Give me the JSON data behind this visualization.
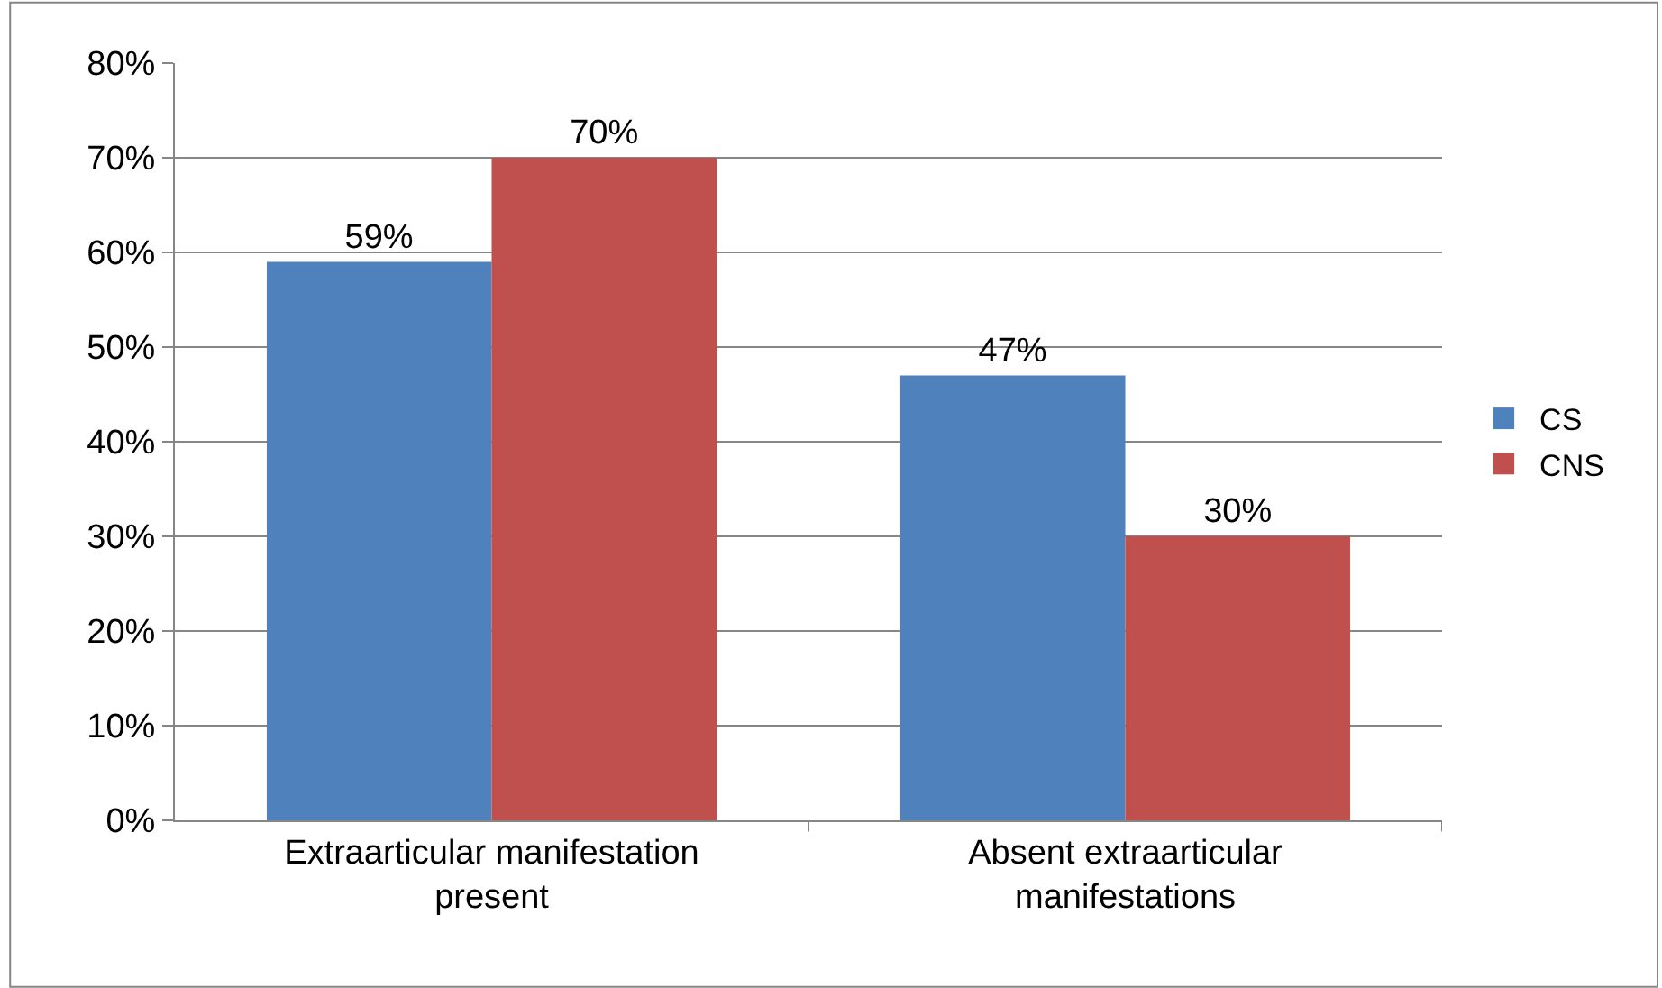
{
  "chart_data": {
    "type": "bar",
    "categories": [
      "Extraarticular manifestation present",
      "Absent extraarticular manifestations"
    ],
    "series": [
      {
        "name": "CS",
        "color": "#4f81bd",
        "values": [
          59,
          47
        ],
        "value_labels": [
          "59%",
          "47%"
        ]
      },
      {
        "name": "CNS",
        "color": "#c0504d",
        "values": [
          70,
          30
        ],
        "value_labels": [
          "70%",
          "30%"
        ]
      }
    ],
    "ylim": [
      0,
      80
    ],
    "yticks": [
      {
        "value": 0,
        "label": "0%"
      },
      {
        "value": 10,
        "label": "10%"
      },
      {
        "value": 20,
        "label": "20%"
      },
      {
        "value": 30,
        "label": "30%"
      },
      {
        "value": 40,
        "label": "40%"
      },
      {
        "value": 50,
        "label": "50%"
      },
      {
        "value": 60,
        "label": "60%"
      },
      {
        "value": 70,
        "label": "70%"
      },
      {
        "value": 80,
        "label": "80%"
      }
    ],
    "grid": "y",
    "legend": "right"
  }
}
